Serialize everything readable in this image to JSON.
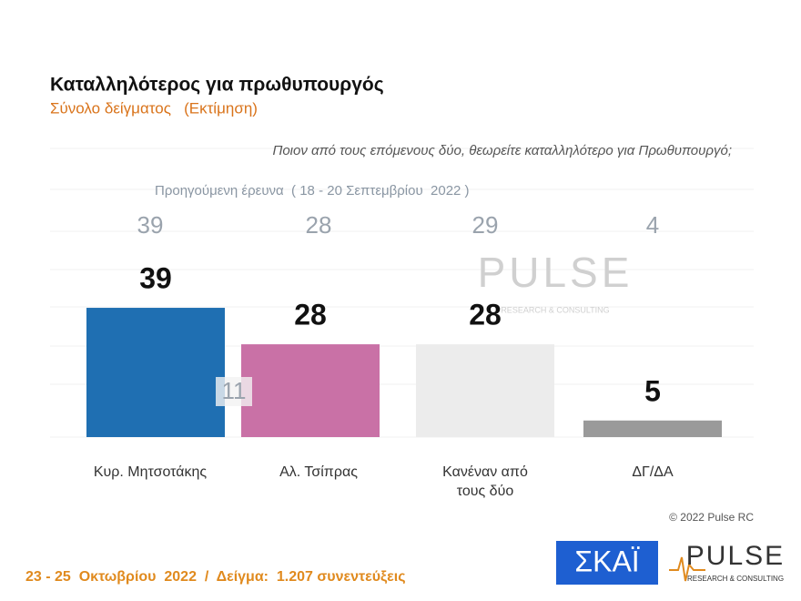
{
  "chart_data": {
    "type": "bar",
    "title": "Καταλληλότερος για πρωθυπουργός",
    "subtitle": "Σύνολο δείγματος   (Εκτίμηση)",
    "question": "Ποιον από τους επόμενους δύο, θεωρείτε καταλληλότερο για Πρωθυπουργό;",
    "previous_label": "Προηγούμενη έρευνα  ( 18 - 20 Σεπτεμβρίου  2022 )",
    "categories": [
      "Κυρ. Μητσοτάκης",
      "Αλ. Τσίπρας",
      "Κανέναν από τους δύο",
      "ΔΓ/ΔΑ"
    ],
    "values": [
      39,
      28,
      28,
      5
    ],
    "previous_values": [
      39,
      28,
      29,
      4
    ],
    "colors": [
      "#1f6fb2",
      "#c971a6",
      "#ececec",
      "#9a9a9a"
    ],
    "annotation": "11",
    "watermark": "PULSE",
    "watermark_sub": "RESEARCH & CONSULTING",
    "copyright": "© 2022 Pulse RC",
    "footer": "23 - 25  Οκτωβρίου  2022  /  Δείγμα:  1.207 συνεντεύξεις",
    "logo_skai": "ΣΚΑΪ",
    "logo_pulse": "PULSE",
    "logo_pulse_sub": "RESEARCH & CONSULTING"
  }
}
